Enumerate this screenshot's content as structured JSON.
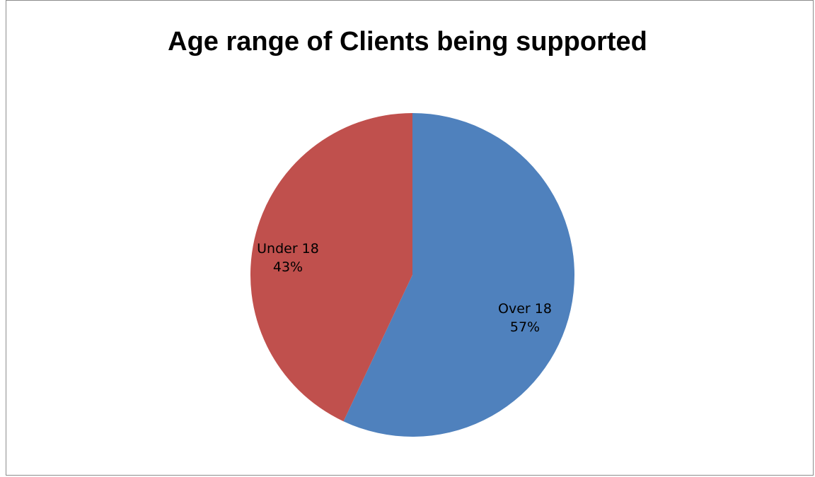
{
  "chart_data": {
    "type": "pie",
    "title": "Age range of Clients being supported",
    "slices": [
      {
        "label": "Over 18",
        "value": 57,
        "percent_label": "57%",
        "color": "#4F81BD"
      },
      {
        "label": "Under 18",
        "value": 43,
        "percent_label": "43%",
        "color": "#C0504D"
      }
    ],
    "start_angle_deg": 0,
    "direction": "clockwise",
    "legend": "none"
  }
}
